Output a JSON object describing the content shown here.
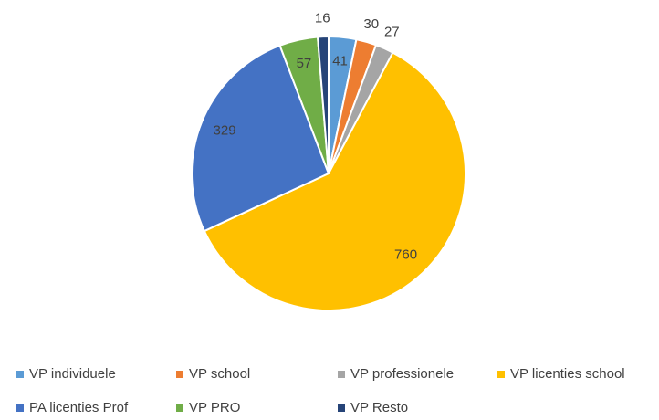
{
  "chart_data": {
    "type": "pie",
    "categories": [
      "VP individuele",
      "VP school",
      "VP professionele",
      "VP licenties school",
      "PA licenties Prof",
      "VP PRO",
      "VP Resto"
    ],
    "values": [
      41,
      30,
      27,
      760,
      329,
      57,
      16
    ],
    "colors": [
      "#5b9bd5",
      "#ed7d31",
      "#a5a5a5",
      "#ffc000",
      "#4472c4",
      "#70ad47",
      "#264478"
    ],
    "legend": "bottom"
  }
}
